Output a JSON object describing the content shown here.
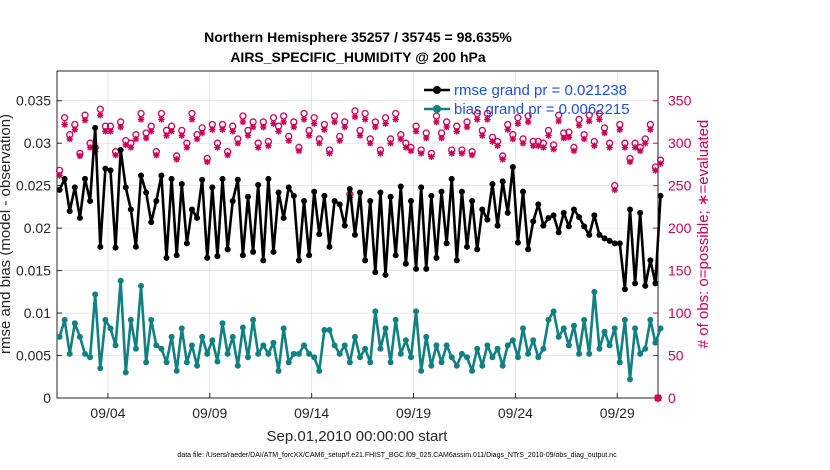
{
  "chart_data": {
    "type": "line",
    "title": "Northern Hemisphere 35257 / 35745 = 98.635%",
    "subtitle": "AIRS_SPECIFIC_HUMIDITY @ 200 hPa",
    "xlabel": "Sep.01,2010 00:00:00 start",
    "ylabel": "rmse and bias (model - observation)",
    "ylabel_right": "# of obs: o=possible; ∗=evaluated",
    "footnote": "data file: /Users/raeder/DAI/ATM_forcXX/CAM6_setup/f.e21.FHIST_BGC.f09_025.CAM6assim.011/Diags_NTrS_2010-09/obs_diag_output.nc",
    "xlim": [
      1.5,
      31.0
    ],
    "ylim": [
      0,
      0.0385
    ],
    "ylim_right": [
      0,
      385
    ],
    "x_ticks": [
      {
        "x": 4,
        "label": "09/04"
      },
      {
        "x": 9,
        "label": "09/09"
      },
      {
        "x": 14,
        "label": "09/14"
      },
      {
        "x": 19,
        "label": "09/19"
      },
      {
        "x": 24,
        "label": "09/24"
      },
      {
        "x": 29,
        "label": "09/29"
      }
    ],
    "y_ticks": [
      {
        "v": 0,
        "label": "0"
      },
      {
        "v": 0.005,
        "label": "0.005"
      },
      {
        "v": 0.01,
        "label": "0.01"
      },
      {
        "v": 0.015,
        "label": "0.015"
      },
      {
        "v": 0.02,
        "label": "0.02"
      },
      {
        "v": 0.025,
        "label": "0.025"
      },
      {
        "v": 0.03,
        "label": "0.03"
      },
      {
        "v": 0.035,
        "label": "0.035"
      }
    ],
    "y_ticks_right": [
      {
        "v": 0,
        "label": "0"
      },
      {
        "v": 50,
        "label": "50"
      },
      {
        "v": 100,
        "label": "100"
      },
      {
        "v": 150,
        "label": "150"
      },
      {
        "v": 200,
        "label": "200"
      },
      {
        "v": 250,
        "label": "250"
      },
      {
        "v": 300,
        "label": "300"
      },
      {
        "v": 350,
        "label": "350"
      }
    ],
    "x_start": 1.625,
    "x_step": 0.25,
    "legend": [
      {
        "label": "rmse grand pr = 0.021238",
        "color": "#000000"
      },
      {
        "label": "bias grand pr = 0.0062215",
        "color": "#108080"
      }
    ],
    "series": [
      {
        "name": "rmse grand pr = 0.021238",
        "color": "#000000",
        "values": [
          0.0245,
          0.0258,
          0.022,
          0.0248,
          0.0212,
          0.0258,
          0.0232,
          0.0318,
          0.0178,
          0.027,
          0.0268,
          0.0177,
          0.0292,
          0.0248,
          0.0222,
          0.0178,
          0.0262,
          0.0242,
          0.0207,
          0.0232,
          0.0262,
          0.0165,
          0.0258,
          0.0168,
          0.0252,
          0.0182,
          0.0222,
          0.0212,
          0.0257,
          0.0165,
          0.0248,
          0.0167,
          0.0258,
          0.0175,
          0.0232,
          0.0257,
          0.0168,
          0.0237,
          0.0172,
          0.0251,
          0.0162,
          0.0258,
          0.0172,
          0.0242,
          0.0212,
          0.0248,
          0.0238,
          0.0162,
          0.0232,
          0.0168,
          0.0243,
          0.0193,
          0.0238,
          0.0178,
          0.0232,
          0.0228,
          0.0203,
          0.0246,
          0.0192,
          0.0242,
          0.0162,
          0.0232,
          0.0148,
          0.0242,
          0.0145,
          0.0237,
          0.0168,
          0.0249,
          0.0158,
          0.0232,
          0.0152,
          0.0248,
          0.0152,
          0.0238,
          0.0165,
          0.0243,
          0.0182,
          0.0258,
          0.0162,
          0.0243,
          0.0178,
          0.0232,
          0.0175,
          0.0222,
          0.021,
          0.0252,
          0.0203,
          0.0255,
          0.0218,
          0.0272,
          0.0183,
          0.0243,
          0.0175,
          0.0208,
          0.0228,
          0.0203,
          0.0212,
          0.0215,
          0.0195,
          0.0218,
          0.0202,
          0.0222,
          0.0213,
          0.0202,
          0.0192,
          0.0215,
          0.0192,
          0.0188,
          0.0185,
          0.0182,
          0.0182,
          0.0128,
          0.0222,
          0.0135,
          0.0218,
          0.0132,
          0.0162,
          0.0135,
          0.0238
        ]
      },
      {
        "name": "bias grand pr = 0.0062215",
        "color": "#108080",
        "values": [
          0.0072,
          0.0092,
          0.0052,
          0.0088,
          0.0072,
          0.0052,
          0.0048,
          0.0122,
          0.0035,
          0.0092,
          0.0082,
          0.0062,
          0.0138,
          0.003,
          0.0092,
          0.0058,
          0.0132,
          0.0042,
          0.0092,
          0.0062,
          0.0058,
          0.0042,
          0.0072,
          0.0032,
          0.0082,
          0.0042,
          0.0062,
          0.0038,
          0.0072,
          0.0052,
          0.0068,
          0.0043,
          0.0088,
          0.0052,
          0.0072,
          0.0038,
          0.0083,
          0.0048,
          0.0092,
          0.0052,
          0.0062,
          0.0052,
          0.0065,
          0.0032,
          0.0082,
          0.0042,
          0.0052,
          0.0052,
          0.0062,
          0.0052,
          0.0048,
          0.0032,
          0.008,
          0.008,
          0.0062,
          0.0052,
          0.0062,
          0.0042,
          0.0072,
          0.0048,
          0.0058,
          0.0042,
          0.0102,
          0.0058,
          0.0082,
          0.0042,
          0.0092,
          0.0052,
          0.0068,
          0.0048,
          0.0102,
          0.0032,
          0.0072,
          0.0038,
          0.0062,
          0.0042,
          0.0062,
          0.0048,
          0.0038,
          0.0052,
          0.0048,
          0.0032,
          0.0058,
          0.0038,
          0.0062,
          0.0048,
          0.0058,
          0.0038,
          0.0062,
          0.0068,
          0.0048,
          0.0082,
          0.0052,
          0.0068,
          0.0048,
          0.0058,
          0.0092,
          0.0102,
          0.0072,
          0.0082,
          0.0062,
          0.0085,
          0.0052,
          0.0092,
          0.0052,
          0.0125,
          0.0058,
          0.0078,
          0.0062,
          0.0082,
          0.0042,
          0.0092,
          0.0022,
          0.0082,
          0.0052,
          0.0058,
          0.0092,
          0.0065,
          0.0082
        ]
      },
      {
        "name": "# of obs possible",
        "color": "#cc0055",
        "axis": "right",
        "marker": "o",
        "values": [
          268,
          330,
          310,
          322,
          288,
          333,
          300,
          295,
          340,
          320,
          320,
          290,
          325,
          303,
          300,
          310,
          335,
          312,
          320,
          290,
          335,
          315,
          320,
          285,
          315,
          300,
          335,
          310,
          318,
          282,
          322,
          300,
          322,
          290,
          320,
          305,
          332,
          315,
          325,
          300,
          325,
          302,
          330,
          320,
          332,
          308,
          325,
          295,
          335,
          315,
          330,
          305,
          322,
          292,
          332,
          308,
          325,
          240,
          338,
          315,
          335,
          305,
          325,
          292,
          330,
          305,
          335,
          310,
          300,
          295,
          320,
          292,
          312,
          288,
          332,
          312,
          325,
          292,
          320,
          292,
          325,
          290,
          335,
          315,
          335,
          307,
          302,
          285,
          322,
          310,
          330,
          305,
          332,
          302,
          302,
          300,
          315,
          298,
          333,
          312,
          313,
          295,
          328,
          310,
          333,
          302,
          335,
          318,
          300,
          250,
          322,
          300,
          282,
          300,
          295,
          305,
          322,
          272,
          280
        ]
      },
      {
        "name": "# of obs evaluated",
        "color": "#cc0055",
        "axis": "right",
        "marker": "*",
        "values": [
          262,
          322,
          305,
          316,
          285,
          327,
          295,
          290,
          333,
          314,
          314,
          286,
          319,
          298,
          295,
          305,
          328,
          306,
          314,
          286,
          328,
          309,
          314,
          281,
          309,
          295,
          328,
          305,
          312,
          278,
          316,
          295,
          316,
          286,
          314,
          300,
          325,
          309,
          319,
          295,
          319,
          297,
          323,
          314,
          325,
          303,
          319,
          291,
          328,
          309,
          323,
          300,
          316,
          288,
          325,
          303,
          319,
          236,
          331,
          309,
          328,
          300,
          319,
          288,
          323,
          300,
          328,
          305,
          295,
          291,
          314,
          288,
          306,
          284,
          325,
          306,
          319,
          288,
          314,
          288,
          319,
          286,
          328,
          309,
          328,
          302,
          297,
          281,
          316,
          305,
          323,
          300,
          325,
          297,
          297,
          295,
          309,
          293,
          326,
          306,
          307,
          291,
          321,
          305,
          326,
          297,
          328,
          312,
          295,
          245,
          316,
          295,
          278,
          295,
          291,
          300,
          316,
          268,
          276
        ]
      }
    ],
    "right_axis_end_marker": {
      "x": 31.0,
      "value": 0
    }
  }
}
